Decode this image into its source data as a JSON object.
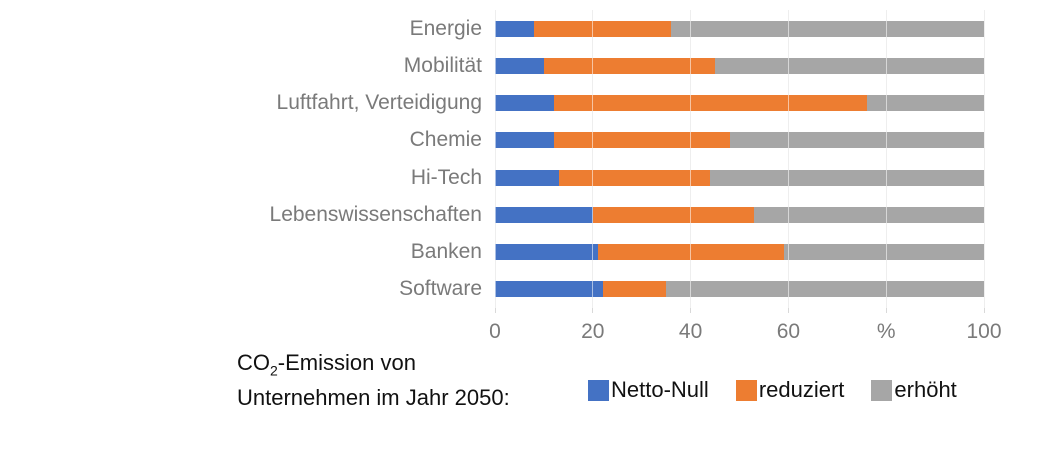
{
  "chart_data": {
    "type": "bar",
    "orientation": "horizontal",
    "stacked": true,
    "title": "",
    "xlabel": "%",
    "ylabel": "",
    "categories": [
      "Energie",
      "Mobilität",
      "Luftfahrt, Verteidigung",
      "Chemie",
      "Hi-Tech",
      "Lebenswissenschaften",
      "Banken",
      "Software"
    ],
    "series": [
      {
        "name": "Netto-Null",
        "color": "#4472C4",
        "values": [
          8,
          10,
          12,
          12,
          13,
          20,
          21,
          22
        ]
      },
      {
        "name": "reduziert",
        "color": "#ED7D31",
        "values": [
          28,
          35,
          64,
          36,
          31,
          33,
          38,
          13
        ]
      },
      {
        "name": "erhöht",
        "color": "#A6A6A6",
        "values": [
          64,
          55,
          24,
          52,
          56,
          47,
          41,
          65
        ]
      }
    ],
    "x_axis": {
      "min": 0,
      "max": 100,
      "tick_values": [
        0,
        20,
        40,
        60,
        80,
        100
      ],
      "tick_labels": [
        "0",
        "20",
        "40",
        "60",
        "%",
        "100"
      ]
    },
    "grid": true,
    "legend_position": "bottom"
  },
  "legend": {
    "caption_co": "CO",
    "caption_sub": "2",
    "caption_rest": "-Emission von",
    "caption_line2": "Unternehmen im Jahr 2050:"
  },
  "colors": {
    "gridline": "#D9D9D9",
    "axis_text": "#7A7A7A",
    "category_text": "#7A7A7A",
    "legend_text": "#111111"
  }
}
